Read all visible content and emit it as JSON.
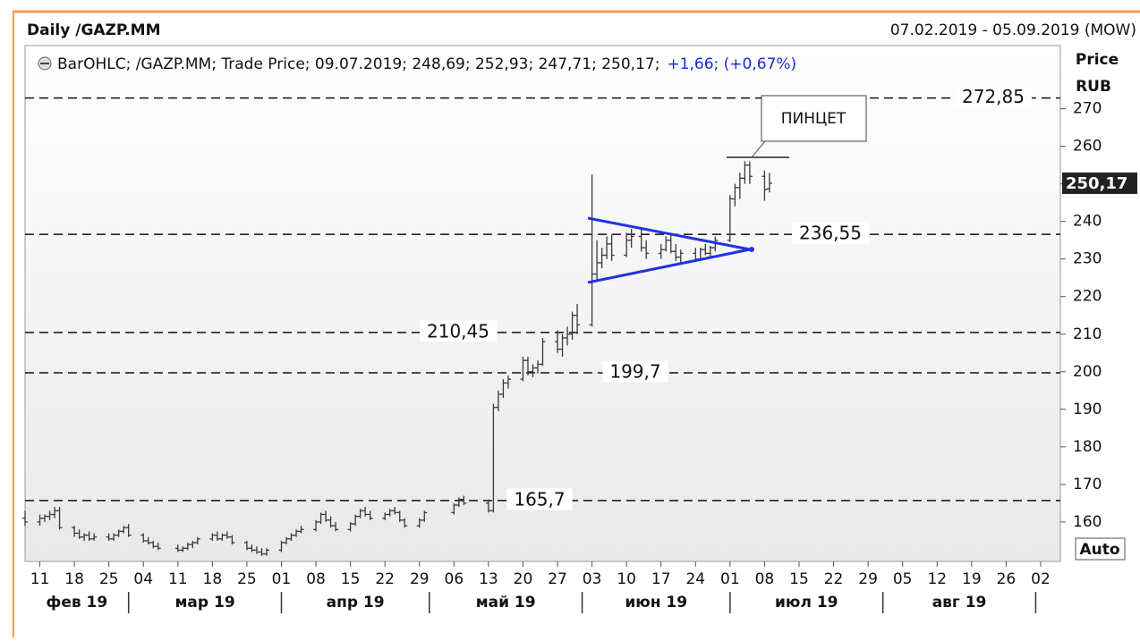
{
  "chart_data": {
    "type": "ohlc",
    "title": "Daily /GAZP.MM",
    "date_range": "07.02.2019 - 05.09.2019 (MOW)",
    "legend": {
      "main": "BarOHLC; /GAZP.MM; Trade Price; 09.07.2019; 248,69; 252,93; 247,71; 250,17;",
      "change": "+1,66; (+0,67%)"
    },
    "y_axis_label": [
      "Price",
      "RUB"
    ],
    "auto_button": "Auto",
    "annotation": "ПИНЦЕТ",
    "color": "#3a3a3a",
    "trend_color": "#2233dd",
    "last_price": {
      "value": 250.17,
      "label": "250,17"
    },
    "levels": [
      {
        "value": 272.85,
        "label": "272,85"
      },
      {
        "value": 236.55,
        "label": "236,55"
      },
      {
        "value": 210.45,
        "label": "210,45"
      },
      {
        "value": 199.7,
        "label": "199,7"
      },
      {
        "value": 165.7,
        "label": "165,7"
      }
    ],
    "xlim": [
      "2019-02-08",
      "2019-09-06"
    ],
    "ylim": [
      149.5,
      286.8
    ],
    "yticks": [
      160,
      170,
      180,
      190,
      200,
      210,
      220,
      230,
      240,
      250,
      260,
      270
    ],
    "xticks": [
      {
        "value": "2019-02-11",
        "label": "11"
      },
      {
        "value": "2019-02-18",
        "label": "18"
      },
      {
        "value": "2019-02-25",
        "label": "25"
      },
      {
        "value": "2019-03-04",
        "label": "04"
      },
      {
        "value": "2019-03-11",
        "label": "11"
      },
      {
        "value": "2019-03-18",
        "label": "18"
      },
      {
        "value": "2019-03-25",
        "label": "25"
      },
      {
        "value": "2019-04-01",
        "label": "01"
      },
      {
        "value": "2019-04-08",
        "label": "08"
      },
      {
        "value": "2019-04-15",
        "label": "15"
      },
      {
        "value": "2019-04-22",
        "label": "22"
      },
      {
        "value": "2019-04-29",
        "label": "29"
      },
      {
        "value": "2019-05-06",
        "label": "06"
      },
      {
        "value": "2019-05-13",
        "label": "13"
      },
      {
        "value": "2019-05-20",
        "label": "20"
      },
      {
        "value": "2019-05-27",
        "label": "27"
      },
      {
        "value": "2019-06-03",
        "label": "03"
      },
      {
        "value": "2019-06-10",
        "label": "10"
      },
      {
        "value": "2019-06-17",
        "label": "17"
      },
      {
        "value": "2019-06-24",
        "label": "24"
      },
      {
        "value": "2019-07-01",
        "label": "01"
      },
      {
        "value": "2019-07-08",
        "label": "08"
      },
      {
        "value": "2019-07-15",
        "label": "15"
      },
      {
        "value": "2019-07-22",
        "label": "22"
      },
      {
        "value": "2019-07-29",
        "label": "29"
      },
      {
        "value": "2019-08-05",
        "label": "05"
      },
      {
        "value": "2019-08-12",
        "label": "12"
      },
      {
        "value": "2019-08-19",
        "label": "19"
      },
      {
        "value": "2019-08-26",
        "label": "26"
      },
      {
        "value": "2019-09-02",
        "label": "02"
      }
    ],
    "month_ticks": [
      "2019-03-01",
      "2019-04-01",
      "2019-05-01",
      "2019-06-01",
      "2019-07-01",
      "2019-08-01",
      "2019-09-01"
    ],
    "month_labels": [
      "фев 19",
      "мар 19",
      "апр 19",
      "май 19",
      "июн 19",
      "июл 19",
      "авг 19"
    ],
    "x": [
      "2019-02-08",
      "2019-02-11",
      "2019-02-12",
      "2019-02-13",
      "2019-02-14",
      "2019-02-15",
      "2019-02-18",
      "2019-02-19",
      "2019-02-20",
      "2019-02-21",
      "2019-02-22",
      "2019-02-25",
      "2019-02-26",
      "2019-02-27",
      "2019-02-28",
      "2019-03-01",
      "2019-03-04",
      "2019-03-05",
      "2019-03-06",
      "2019-03-07",
      "2019-03-11",
      "2019-03-12",
      "2019-03-13",
      "2019-03-14",
      "2019-03-15",
      "2019-03-18",
      "2019-03-19",
      "2019-03-20",
      "2019-03-21",
      "2019-03-22",
      "2019-03-25",
      "2019-03-26",
      "2019-03-27",
      "2019-03-28",
      "2019-03-29",
      "2019-04-01",
      "2019-04-02",
      "2019-04-03",
      "2019-04-04",
      "2019-04-05",
      "2019-04-08",
      "2019-04-09",
      "2019-04-10",
      "2019-04-11",
      "2019-04-12",
      "2019-04-15",
      "2019-04-16",
      "2019-04-17",
      "2019-04-18",
      "2019-04-19",
      "2019-04-22",
      "2019-04-23",
      "2019-04-24",
      "2019-04-25",
      "2019-04-26",
      "2019-04-29",
      "2019-04-30",
      "2019-05-06",
      "2019-05-07",
      "2019-05-08",
      "2019-05-13",
      "2019-05-14",
      "2019-05-15",
      "2019-05-16",
      "2019-05-17",
      "2019-05-20",
      "2019-05-21",
      "2019-05-22",
      "2019-05-23",
      "2019-05-24",
      "2019-05-27",
      "2019-05-28",
      "2019-05-29",
      "2019-05-30",
      "2019-05-31",
      "2019-06-03",
      "2019-06-04",
      "2019-06-05",
      "2019-06-06",
      "2019-06-07",
      "2019-06-10",
      "2019-06-11",
      "2019-06-13",
      "2019-06-14",
      "2019-06-17",
      "2019-06-18",
      "2019-06-19",
      "2019-06-20",
      "2019-06-21",
      "2019-06-24",
      "2019-06-25",
      "2019-06-26",
      "2019-06-27",
      "2019-06-28",
      "2019-07-01",
      "2019-07-02",
      "2019-07-03",
      "2019-07-04",
      "2019-07-05",
      "2019-07-08",
      "2019-07-09"
    ],
    "ohlc": [
      [
        161,
        163,
        159,
        160
      ],
      [
        160,
        162,
        159,
        161
      ],
      [
        161,
        162,
        160,
        161.5
      ],
      [
        161.5,
        163,
        160.5,
        162
      ],
      [
        162,
        164,
        161,
        163
      ],
      [
        163,
        164,
        158,
        158.5
      ],
      [
        158.5,
        159,
        156,
        157
      ],
      [
        157,
        158,
        155.5,
        156
      ],
      [
        156,
        157,
        155,
        156.5
      ],
      [
        156.5,
        157.5,
        155,
        155.5
      ],
      [
        155.5,
        157,
        155,
        156
      ],
      [
        156,
        157,
        155,
        155.5
      ],
      [
        155.5,
        157,
        155,
        156.5
      ],
      [
        156.5,
        158,
        156,
        157.5
      ],
      [
        157.5,
        159,
        157,
        158.5
      ],
      [
        158.5,
        159.5,
        156,
        156.5
      ],
      [
        156.5,
        157,
        154.5,
        155
      ],
      [
        155,
        156,
        154,
        154.5
      ],
      [
        154.5,
        155,
        153,
        153.5
      ],
      [
        153.5,
        154.5,
        152.5,
        153
      ],
      [
        153,
        154,
        152,
        152.5
      ],
      [
        152.5,
        153.5,
        152,
        153
      ],
      [
        153,
        154.5,
        152.5,
        154
      ],
      [
        154,
        155,
        153,
        154.5
      ],
      [
        154.5,
        156,
        154,
        155.5
      ],
      [
        155.5,
        157,
        155,
        156.5
      ],
      [
        156.5,
        157.5,
        155,
        155.5
      ],
      [
        155.5,
        157,
        155,
        156.5
      ],
      [
        156.5,
        157.5,
        155.5,
        156
      ],
      [
        156,
        156.5,
        154,
        154.5
      ],
      [
        154.5,
        155,
        152.5,
        153
      ],
      [
        153,
        154,
        152,
        152.5
      ],
      [
        152.5,
        153.5,
        151.5,
        152
      ],
      [
        152,
        153,
        151,
        151.5
      ],
      [
        151.5,
        153,
        151,
        152.5
      ],
      [
        152.5,
        155,
        152,
        154.5
      ],
      [
        154.5,
        156,
        154,
        155.5
      ],
      [
        155.5,
        157,
        155,
        156.5
      ],
      [
        156.5,
        158,
        156,
        157.5
      ],
      [
        157.5,
        159,
        157,
        158
      ],
      [
        158,
        160.5,
        157.5,
        160
      ],
      [
        160,
        162.5,
        159.5,
        162
      ],
      [
        162,
        163,
        160,
        160.5
      ],
      [
        160.5,
        161.5,
        158.5,
        159
      ],
      [
        159,
        160,
        157.5,
        158
      ],
      [
        158,
        160,
        157.5,
        159.5
      ],
      [
        159.5,
        162,
        159,
        161.5
      ],
      [
        161.5,
        163.5,
        161,
        163
      ],
      [
        163,
        164,
        161.5,
        162
      ],
      [
        162,
        163,
        160.5,
        161
      ],
      [
        161,
        162.5,
        160.5,
        162
      ],
      [
        162,
        163.5,
        161.5,
        163
      ],
      [
        163,
        164,
        162,
        162.5
      ],
      [
        162.5,
        163,
        160,
        160.5
      ],
      [
        160.5,
        161,
        158.5,
        159
      ],
      [
        159,
        161,
        158.5,
        160.5
      ],
      [
        160.5,
        163,
        160,
        162.5
      ],
      [
        162.5,
        165,
        162,
        164.5
      ],
      [
        164.5,
        166.5,
        164,
        166
      ],
      [
        166,
        167,
        164.5,
        165
      ],
      [
        165,
        166,
        162.5,
        163
      ],
      [
        163,
        191.5,
        162.5,
        190.5
      ],
      [
        190.5,
        195,
        189.5,
        194
      ],
      [
        194,
        198,
        193,
        197
      ],
      [
        197,
        199,
        195.5,
        198
      ],
      [
        198,
        204,
        197.5,
        203
      ],
      [
        203,
        204,
        199,
        200
      ],
      [
        200,
        202,
        198.5,
        201
      ],
      [
        201,
        203,
        199.5,
        202
      ],
      [
        202,
        209,
        201.5,
        208
      ],
      [
        208,
        211,
        205,
        206
      ],
      [
        206,
        210,
        204,
        209
      ],
      [
        209,
        212,
        207,
        210
      ],
      [
        210,
        216,
        208.5,
        215
      ],
      [
        215,
        218,
        210,
        212.5
      ],
      [
        212.5,
        252.5,
        212,
        226
      ],
      [
        226,
        235,
        224,
        229
      ],
      [
        229,
        233,
        227.5,
        231
      ],
      [
        231,
        236,
        230,
        234
      ],
      [
        234,
        236.5,
        229.5,
        231
      ],
      [
        231,
        237,
        230.5,
        235
      ],
      [
        235,
        238,
        233,
        236
      ],
      [
        236,
        238.5,
        232,
        233
      ],
      [
        233,
        235,
        230,
        231.5
      ],
      [
        231.5,
        234,
        230,
        232.5
      ],
      [
        232.5,
        236,
        232,
        235
      ],
      [
        235,
        236.5,
        231.5,
        232
      ],
      [
        232,
        234,
        229.5,
        230.5
      ],
      [
        230.5,
        232.5,
        229,
        231.5
      ],
      [
        231.5,
        233,
        229.5,
        230
      ],
      [
        230,
        233,
        229.5,
        232.5
      ],
      [
        232.5,
        234,
        231,
        231.5
      ],
      [
        231.5,
        233.5,
        230.5,
        233
      ],
      [
        233,
        236,
        232,
        235
      ],
      [
        235,
        247,
        234.5,
        246
      ],
      [
        246,
        250,
        244,
        249
      ],
      [
        249,
        253,
        246,
        251.5
      ],
      [
        251.5,
        256,
        250,
        255
      ],
      [
        255,
        256,
        250,
        252
      ],
      [
        252,
        253.5,
        245.5,
        248.51
      ],
      [
        248.69,
        252.93,
        247.71,
        250.17
      ]
    ]
  }
}
